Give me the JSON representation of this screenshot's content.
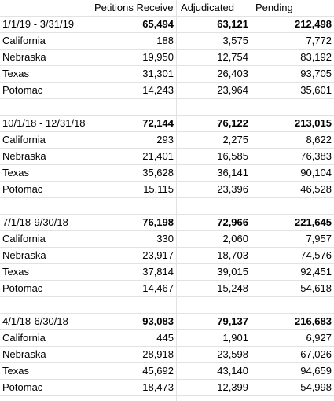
{
  "headers": [
    "",
    "Petitions Receive",
    "Adjudicated",
    "Pending"
  ],
  "sections": [
    {
      "period": "1/1/19 - 3/31/19",
      "total": [
        "65,494",
        "63,121",
        "212,498"
      ],
      "rows": [
        {
          "name": "California",
          "values": [
            "188",
            "3,575",
            "7,772"
          ]
        },
        {
          "name": "Nebraska",
          "values": [
            "19,950",
            "12,754",
            "83,192"
          ]
        },
        {
          "name": "Texas",
          "values": [
            "31,301",
            "26,403",
            "93,705"
          ]
        },
        {
          "name": "Potomac",
          "values": [
            "14,243",
            "23,964",
            "35,601"
          ]
        }
      ]
    },
    {
      "period": "10/1/18 - 12/31/18",
      "total": [
        "72,144",
        "76,122",
        "213,015"
      ],
      "rows": [
        {
          "name": "California",
          "values": [
            "293",
            "2,275",
            "8,622"
          ]
        },
        {
          "name": "Nebraska",
          "values": [
            "21,401",
            "16,585",
            "76,383"
          ]
        },
        {
          "name": "Texas",
          "values": [
            "35,628",
            "36,141",
            "90,104"
          ]
        },
        {
          "name": "Potomac",
          "values": [
            "15,115",
            "23,396",
            "46,528"
          ]
        }
      ]
    },
    {
      "period": "7/1/18-9/30/18",
      "total": [
        "76,198",
        "72,966",
        "221,645"
      ],
      "rows": [
        {
          "name": "California",
          "values": [
            "330",
            "2,060",
            "7,957"
          ]
        },
        {
          "name": "Nebraska",
          "values": [
            "23,917",
            "18,703",
            "74,576"
          ]
        },
        {
          "name": "Texas",
          "values": [
            "37,814",
            "39,015",
            "92,451"
          ]
        },
        {
          "name": "Potomac",
          "values": [
            "14,467",
            "15,248",
            "54,618"
          ]
        }
      ]
    },
    {
      "period": "4/1/18-6/30/18",
      "total": [
        "93,083",
        "79,137",
        "216,683"
      ],
      "rows": [
        {
          "name": "California",
          "values": [
            "445",
            "1,901",
            "6,927"
          ]
        },
        {
          "name": "Nebraska",
          "values": [
            "28,918",
            "23,598",
            "67,026"
          ]
        },
        {
          "name": "Texas",
          "values": [
            "45,692",
            "43,140",
            "94,659"
          ]
        },
        {
          "name": "Potomac",
          "values": [
            "18,473",
            "12,399",
            "54,998"
          ]
        }
      ]
    }
  ]
}
